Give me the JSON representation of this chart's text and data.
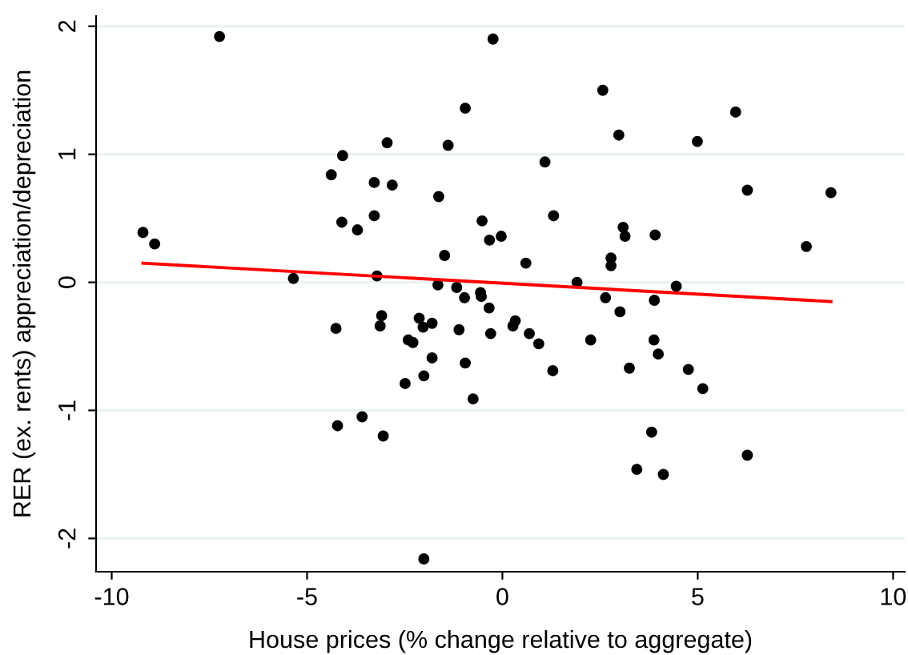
{
  "chart_data": {
    "type": "scatter",
    "xlabel": "House prices (% change relative to aggregate)",
    "ylabel": "RER (ex. rents) appreciation/depreciation",
    "xlim": [
      -10.4,
      10.3
    ],
    "ylim": [
      -2.26,
      2.08
    ],
    "xticks": [
      -10,
      -5,
      0,
      5,
      10
    ],
    "yticks": [
      -2,
      -1,
      0,
      1,
      2
    ],
    "grid": "y",
    "legend": false,
    "marker": "circle",
    "series": [
      {
        "color": "#000000",
        "x": [
          -7.24,
          -9.2,
          -8.9,
          -5.35,
          -4.09,
          -4.38,
          -2.95,
          -3.28,
          -2.82,
          -4.11,
          -3.71,
          -3.28,
          -3.21,
          -1.63,
          -1.39,
          -0.95,
          -0.24,
          -1.48,
          -0.52,
          -0.33,
          -0.03,
          -1.65,
          -1.17,
          -0.97,
          -0.56,
          -0.54,
          2.57,
          2.98,
          4.99,
          5.97,
          1.09,
          6.27,
          8.41,
          7.78,
          1.31,
          3.09,
          3.14,
          3.91,
          0.6,
          2.78,
          2.78,
          1.91,
          4.45,
          2.64,
          3.89,
          -4.26,
          -3.09,
          -3.13,
          -2.13,
          -2.03,
          -1.8,
          -2.41,
          -2.29,
          -1.11,
          -0.3,
          -0.34,
          -1.8,
          -2.01,
          -2.49,
          -0.95,
          -0.75,
          -3.59,
          -4.22,
          -3.05,
          -2.01,
          0.27,
          0.33,
          3.01,
          0.69,
          0.93,
          1.29,
          2.26,
          3.25,
          3.88,
          3.99,
          4.76,
          5.13,
          3.82,
          3.44,
          4.12,
          6.27
        ],
        "values": [
          1.92,
          0.39,
          0.3,
          0.03,
          0.99,
          0.84,
          1.09,
          0.78,
          0.76,
          0.47,
          0.41,
          0.52,
          0.05,
          0.67,
          1.07,
          1.36,
          1.9,
          0.21,
          0.48,
          0.33,
          0.36,
          -0.02,
          -0.04,
          -0.12,
          -0.08,
          -0.11,
          1.5,
          1.15,
          1.1,
          1.33,
          0.94,
          0.72,
          0.7,
          0.28,
          0.52,
          0.43,
          0.36,
          0.37,
          0.15,
          0.19,
          0.13,
          0.0,
          -0.03,
          -0.12,
          -0.14,
          -0.36,
          -0.26,
          -0.34,
          -0.28,
          -0.35,
          -0.32,
          -0.45,
          -0.47,
          -0.37,
          -0.4,
          -0.2,
          -0.59,
          -0.73,
          -0.79,
          -0.63,
          -0.91,
          -1.05,
          -1.12,
          -1.2,
          -2.16,
          -0.34,
          -0.3,
          -0.23,
          -0.4,
          -0.48,
          -0.69,
          -0.45,
          -0.67,
          -0.45,
          -0.56,
          -0.68,
          -0.83,
          -1.17,
          -1.46,
          -1.5,
          -1.35
        ]
      },
      {
        "type": "line",
        "color": "#ff0000",
        "marker": "none",
        "line_style": "solid",
        "x": [
          -9.2,
          8.41
        ],
        "values": [
          0.15,
          -0.15
        ]
      }
    ]
  }
}
